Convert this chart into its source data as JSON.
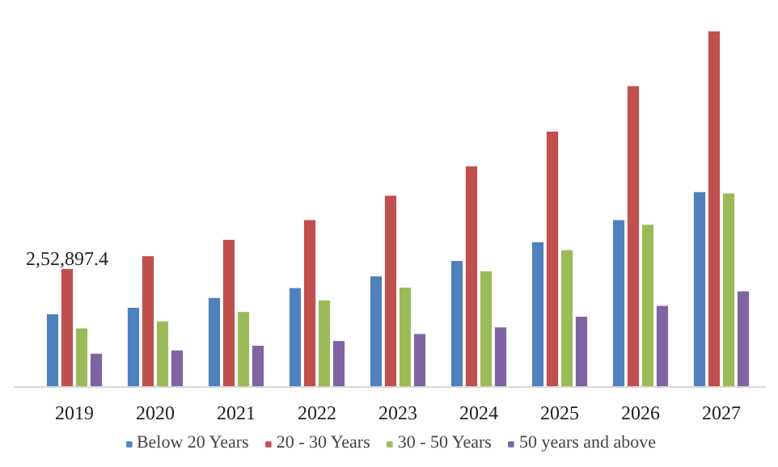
{
  "chart_data": {
    "type": "bar",
    "categories": [
      "2019",
      "2020",
      "2021",
      "2022",
      "2023",
      "2024",
      "2025",
      "2026",
      "2027"
    ],
    "series": [
      {
        "name": "Below 20 Years",
        "color": "#4f81bd",
        "values": [
          156000,
          170000,
          191000,
          212000,
          237000,
          270000,
          310000,
          357000,
          417000
        ]
      },
      {
        "name": "20 - 30 Years",
        "color": "#c0504d",
        "values": [
          252897.4,
          280000,
          315000,
          357000,
          409000,
          472000,
          546000,
          643000,
          760000
        ],
        "value_labels": [
          "2,52,897.4",
          null,
          null,
          null,
          null,
          null,
          null,
          null,
          null
        ]
      },
      {
        "name": "30 - 50 Years",
        "color": "#9bbb59",
        "values": [
          126000,
          141000,
          161000,
          186000,
          213000,
          248000,
          293000,
          347000,
          414000
        ]
      },
      {
        "name": "50 years and above",
        "color": "#8064a2",
        "values": [
          72000,
          79000,
          89000,
          99000,
          114000,
          128000,
          151000,
          174000,
          205000
        ]
      }
    ],
    "legend": "bottom"
  }
}
